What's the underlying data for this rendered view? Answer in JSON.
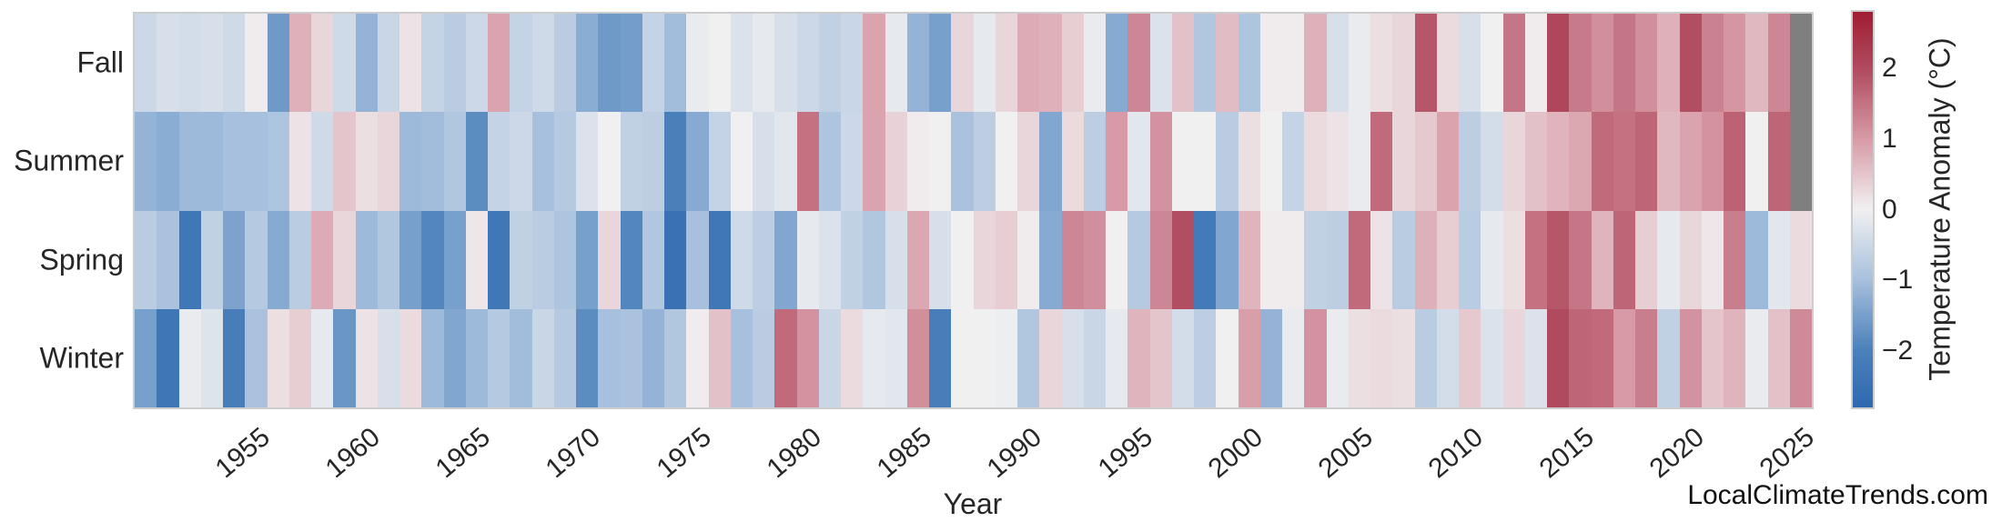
{
  "watermark": "LocalClimateTrends.com",
  "chart_data": {
    "type": "heatmap",
    "title": "",
    "xlabel": "Year",
    "ylabel": "",
    "colorbar_label": "Temperature Anomaly (°C)",
    "colorbar_ticks": [
      {
        "label": "2",
        "value": 2
      },
      {
        "label": "1",
        "value": 1
      },
      {
        "label": "0",
        "value": 0
      },
      {
        "label": "−1",
        "value": -1
      },
      {
        "label": "−2",
        "value": -2
      }
    ],
    "value_range": {
      "vmin": -2.8,
      "vmax": 2.8
    },
    "grid": false,
    "legend_position": "right-colorbar",
    "missing_color": "#7f7f7f",
    "colormap": {
      "name": "vlag-like-diverging",
      "mid": "#f1f0f1",
      "blue_stops": [
        [
          0,
          "#f1f0f1"
        ],
        [
          1,
          "#a6c0dd"
        ],
        [
          2,
          "#4a80ba"
        ],
        [
          2.8,
          "#2e68b0"
        ]
      ],
      "red_stops": [
        [
          0,
          "#f1f0f1"
        ],
        [
          1,
          "#d79aa6"
        ],
        [
          2,
          "#b04a5e"
        ],
        [
          2.8,
          "#a01d32"
        ]
      ]
    },
    "x_start_year": 1950,
    "x_end_year": 2025,
    "x_tick_years": [
      1955,
      1960,
      1965,
      1970,
      1975,
      1980,
      1985,
      1990,
      1995,
      2000,
      2005,
      2010,
      2015,
      2020,
      2025
    ],
    "categories_y": [
      "Fall",
      "Summer",
      "Spring",
      "Winter"
    ],
    "series": [
      {
        "name": "Fall",
        "values": [
          -0.5,
          -0.35,
          -0.4,
          -0.35,
          -0.45,
          0.05,
          -1.6,
          0.75,
          0.3,
          -0.45,
          -1.2,
          -0.55,
          0.15,
          -0.6,
          -0.75,
          -0.5,
          0.9,
          -0.6,
          -0.45,
          -0.75,
          -1.3,
          -1.6,
          -1.55,
          -0.6,
          -1.05,
          -0.1,
          0.0,
          -0.3,
          -0.15,
          -0.35,
          -0.5,
          -0.65,
          -0.55,
          0.9,
          -0.15,
          -1.2,
          -1.5,
          0.3,
          -0.15,
          0.3,
          0.8,
          0.75,
          0.4,
          -0.1,
          -1.35,
          1.25,
          -0.3,
          0.55,
          -0.85,
          0.6,
          -0.9,
          0.05,
          0.05,
          0.75,
          -0.35,
          -0.1,
          0.2,
          0.3,
          1.85,
          0.25,
          -0.35,
          0.0,
          1.45,
          0.05,
          2.05,
          1.4,
          1.15,
          1.45,
          1.15,
          0.75,
          1.95,
          1.3,
          1.05,
          0.65,
          1.25,
          null
        ]
      },
      {
        "name": "Summer",
        "values": [
          -1.2,
          -1.3,
          -1.1,
          -1.1,
          -1.0,
          -1.0,
          -0.9,
          0.15,
          -0.45,
          0.5,
          0.2,
          0.3,
          -1.1,
          -1.05,
          -0.85,
          -1.8,
          -0.6,
          -0.5,
          -1.0,
          -0.8,
          -0.3,
          0.0,
          -0.65,
          -0.7,
          -2.0,
          -1.35,
          -0.6,
          0.0,
          -0.35,
          -0.2,
          1.5,
          -0.9,
          -0.5,
          0.9,
          0.35,
          0.05,
          0.0,
          -0.95,
          -0.7,
          0.0,
          0.3,
          -1.4,
          0.25,
          -0.7,
          1.0,
          -0.2,
          1.1,
          0.0,
          0.0,
          -0.75,
          0.2,
          0.0,
          -0.6,
          0.25,
          0.15,
          -0.1,
          1.6,
          0.3,
          0.45,
          0.9,
          -0.7,
          -0.4,
          0.3,
          0.55,
          0.7,
          0.85,
          1.6,
          1.5,
          1.65,
          0.65,
          0.9,
          1.1,
          1.7,
          0.0,
          1.65,
          null
        ]
      },
      {
        "name": "Spring",
        "values": [
          -0.75,
          -0.95,
          -2.3,
          -0.65,
          -1.45,
          -0.8,
          -1.35,
          -0.75,
          0.8,
          0.3,
          -1.1,
          -0.85,
          -1.5,
          -1.9,
          -1.5,
          0.1,
          -2.3,
          -0.65,
          -0.75,
          -0.9,
          -1.5,
          0.3,
          -1.9,
          -0.85,
          -2.5,
          -1.0,
          -2.3,
          -0.45,
          -0.7,
          -1.4,
          -0.15,
          -0.3,
          -0.65,
          -0.85,
          -0.35,
          0.85,
          -0.35,
          0.0,
          0.3,
          0.4,
          0.05,
          -1.35,
          1.25,
          1.15,
          0.0,
          -0.8,
          1.25,
          1.95,
          -2.2,
          -1.4,
          0.7,
          0.05,
          0.05,
          -0.65,
          -0.7,
          1.6,
          0.15,
          -0.75,
          0.75,
          0.4,
          -0.75,
          -0.15,
          0.2,
          1.5,
          1.85,
          1.45,
          0.7,
          1.65,
          0.4,
          -0.15,
          0.3,
          0.1,
          1.35,
          -1.1,
          -0.2,
          0.25
        ]
      },
      {
        "name": "Winter",
        "values": [
          -1.5,
          -2.35,
          -0.1,
          -0.25,
          -2.1,
          -0.95,
          0.2,
          0.4,
          -0.15,
          -1.65,
          0.15,
          -0.35,
          0.25,
          -1.1,
          -1.4,
          -1.1,
          -0.8,
          -1.05,
          -0.55,
          -0.8,
          -1.8,
          -1.0,
          -0.95,
          -1.2,
          -0.85,
          0.05,
          0.55,
          -1.0,
          -0.75,
          1.6,
          1.1,
          -0.55,
          0.25,
          -0.15,
          -0.2,
          1.15,
          -2.1,
          0.0,
          0.0,
          -0.05,
          -0.85,
          0.3,
          -0.35,
          -0.55,
          -0.15,
          0.7,
          0.5,
          -0.4,
          -0.7,
          0.0,
          0.95,
          -1.2,
          -0.1,
          1.1,
          -0.1,
          0.2,
          0.25,
          0.2,
          -0.75,
          -0.4,
          0.45,
          -0.3,
          0.3,
          -0.3,
          2.0,
          1.65,
          1.6,
          1.0,
          1.35,
          -0.65,
          1.1,
          0.5,
          0.7,
          -0.1,
          0.55,
          1.2
        ]
      }
    ]
  }
}
